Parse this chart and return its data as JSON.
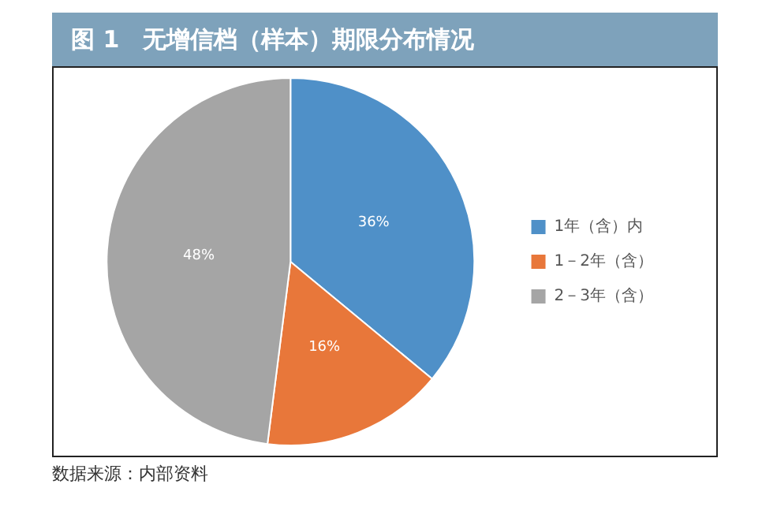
{
  "chart_data": {
    "type": "pie",
    "title": "图 1　无增信档（样本）期限分布情况",
    "categories": [
      "1年（含）内",
      "1－2年（含）",
      "2－3年（含）"
    ],
    "values": [
      36,
      16,
      48
    ],
    "colors": [
      "#4f90c8",
      "#e8773a",
      "#a5a5a5"
    ],
    "value_labels": [
      "36%",
      "16%",
      "48%"
    ],
    "legend": "right",
    "annotations": [
      "数据来源：内部资料"
    ]
  }
}
